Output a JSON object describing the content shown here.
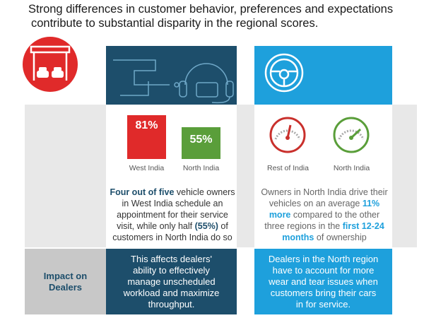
{
  "header": {
    "title": [
      "Strong differences in customer behavior, preferences and expectations",
      "contribute to substantial disparity in the regional scores."
    ]
  },
  "left_panel": {
    "stats": [
      {
        "value": "81%",
        "label": "West India"
      },
      {
        "value": "55%",
        "label": "North India"
      }
    ],
    "description": [
      {
        "text": "Four out of five",
        "emphasis": true
      },
      {
        "text": " vehicle owners in West India schedule an appointment for their service visit, while only half ",
        "emphasis": false
      },
      {
        "text": "(55%)",
        "emphasis": true
      },
      {
        "text": " of customers in North India do so",
        "emphasis": false
      }
    ]
  },
  "right_panel": {
    "gauges": [
      {
        "label": "Rest of India"
      },
      {
        "label": "North India"
      }
    ],
    "description": [
      {
        "text": "Owners in North India drive their vehicles on an average ",
        "emphasis": false
      },
      {
        "text": "11% more",
        "emphasis": true
      },
      {
        "text": " compared to the other three regions in the ",
        "emphasis": false
      },
      {
        "text": "first 12-24 months",
        "emphasis": true
      },
      {
        "text": " of ownership",
        "emphasis": false
      }
    ]
  },
  "impact": {
    "label": "Impact on Dealers",
    "left": "This affects dealers' ability to effectively manage unscheduled workload and maximize throughput.",
    "right": "Dealers in the North region have to account for more wear and tear issues when customers bring their cars in for service."
  }
}
